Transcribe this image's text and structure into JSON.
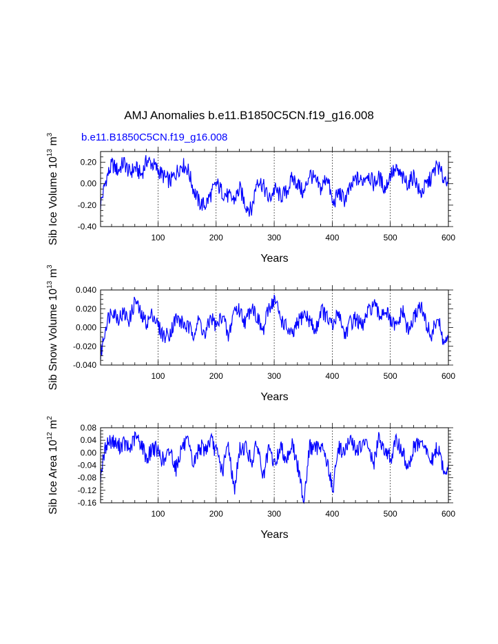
{
  "colors": {
    "series": "#0000ff",
    "axis": "#000000",
    "grid": "#000000"
  },
  "page": {
    "title": "AMJ Anomalies b.e11.B1850C5CN.f19_g16.008",
    "subtitle": "b.e11.B1850C5CN.f19_g16.008"
  },
  "chart_data": [
    {
      "type": "line",
      "title": "",
      "xlabel": "Years",
      "ylabel": "Sib Ice Volume 10",
      "ylabel_exp": "13",
      "ylabel_unit": " m",
      "ylabel_unit_exp": "3",
      "xlim": [
        1,
        600
      ],
      "ylim": [
        -0.4,
        0.3
      ],
      "xticks": [
        100,
        200,
        300,
        400,
        500,
        600
      ],
      "yticks": [
        -0.4,
        -0.2,
        0.0,
        0.2
      ],
      "ytick_labels": [
        "-0.40",
        "-0.20",
        "0.00",
        "0.20"
      ],
      "grid": "dashed vertical at x ticks",
      "series": [
        {
          "name": "b.e11.B1850C5CN.f19_g16.008",
          "x_step": 10,
          "x_start": 1,
          "values": [
            -0.19,
            0.05,
            0.18,
            0.12,
            0.2,
            0.1,
            0.15,
            0.08,
            0.22,
            0.18,
            0.12,
            0.06,
            0.02,
            0.1,
            0.18,
            0.14,
            -0.05,
            -0.18,
            -0.2,
            -0.1,
            0.0,
            -0.08,
            -0.12,
            -0.15,
            -0.05,
            -0.2,
            -0.25,
            0.05,
            -0.02,
            -0.15,
            -0.05,
            -0.12,
            -0.08,
            0.05,
            0.0,
            -0.1,
            0.1,
            0.02,
            -0.05,
            0.08,
            -0.2,
            -0.08,
            -0.15,
            -0.05,
            0.05,
            0.02,
            0.1,
            0.0,
            0.06,
            -0.05,
            0.1,
            0.12,
            0.05,
            0.0,
            0.08,
            -0.1,
            -0.02,
            0.06,
            0.18,
            0.05
          ]
        }
      ]
    },
    {
      "type": "line",
      "title": "",
      "xlabel": "Years",
      "ylabel": "Sib Snow Volume 10",
      "ylabel_exp": "13",
      "ylabel_unit": " m",
      "ylabel_unit_exp": "3",
      "xlim": [
        1,
        600
      ],
      "ylim": [
        -0.04,
        0.04
      ],
      "xticks": [
        100,
        200,
        300,
        400,
        500,
        600
      ],
      "yticks": [
        -0.04,
        -0.02,
        0.0,
        0.02,
        0.04
      ],
      "ytick_labels": [
        "-0.040",
        "-0.020",
        "0.000",
        "0.020",
        "0.040"
      ],
      "grid": "dashed vertical at x ticks",
      "series": [
        {
          "name": "b.e11.B1850C5CN.f19_g16.008",
          "x_step": 10,
          "x_start": 1,
          "values": [
            -0.03,
            0.005,
            0.02,
            0.01,
            0.015,
            0.008,
            0.03,
            0.012,
            0.005,
            0.015,
            0.0,
            -0.01,
            -0.005,
            0.01,
            0.005,
            0.0,
            -0.005,
            0.008,
            -0.01,
            0.012,
            0.0,
            0.015,
            -0.012,
            0.02,
            0.018,
            0.005,
            0.025,
            0.01,
            -0.005,
            0.022,
            0.03,
            0.01,
            0.0,
            -0.01,
            0.005,
            0.015,
            0.008,
            -0.005,
            0.02,
            0.01,
            0.0,
            0.018,
            -0.008,
            0.005,
            0.01,
            0.0,
            0.015,
            0.025,
            0.012,
            0.02,
            0.005,
            0.0,
            0.018,
            -0.005,
            0.01,
            0.025,
            0.005,
            -0.01,
            0.012,
            -0.015
          ]
        }
      ]
    },
    {
      "type": "line",
      "title": "",
      "xlabel": "Years",
      "ylabel": "Sib Ice Area 10",
      "ylabel_exp": "12",
      "ylabel_unit": " m",
      "ylabel_unit_exp": "2",
      "xlim": [
        1,
        600
      ],
      "ylim": [
        -0.16,
        0.08
      ],
      "xticks": [
        100,
        200,
        300,
        400,
        500,
        600
      ],
      "yticks": [
        -0.16,
        -0.12,
        -0.08,
        -0.04,
        0.0,
        0.04,
        0.08
      ],
      "ytick_labels": [
        "-0.16",
        "-0.12",
        "-0.08",
        "-0.04",
        "0.00",
        "0.04",
        "0.08"
      ],
      "grid": "dashed vertical at x ticks",
      "series": [
        {
          "name": "b.e11.B1850C5CN.f19_g16.008",
          "x_step": 10,
          "x_start": 1,
          "values": [
            -0.07,
            0.03,
            0.04,
            0.02,
            0.03,
            0.01,
            0.05,
            0.03,
            -0.02,
            0.02,
            0.0,
            -0.03,
            0.01,
            -0.05,
            0.02,
            0.03,
            -0.04,
            0.02,
            0.01,
            0.04,
            0.0,
            -0.06,
            0.03,
            -0.12,
            0.01,
            0.02,
            -0.03,
            0.03,
            -0.08,
            0.01,
            -0.04,
            0.02,
            -0.02,
            0.03,
            -0.05,
            -0.15,
            0.02,
            0.01,
            0.03,
            -0.03,
            -0.12,
            0.02,
            0.0,
            0.04,
            0.01,
            0.02,
            0.03,
            -0.04,
            0.05,
            0.01,
            -0.02,
            0.04,
            0.0,
            -0.05,
            0.02,
            0.03,
            0.01,
            -0.03,
            0.02,
            -0.05
          ]
        }
      ]
    }
  ]
}
